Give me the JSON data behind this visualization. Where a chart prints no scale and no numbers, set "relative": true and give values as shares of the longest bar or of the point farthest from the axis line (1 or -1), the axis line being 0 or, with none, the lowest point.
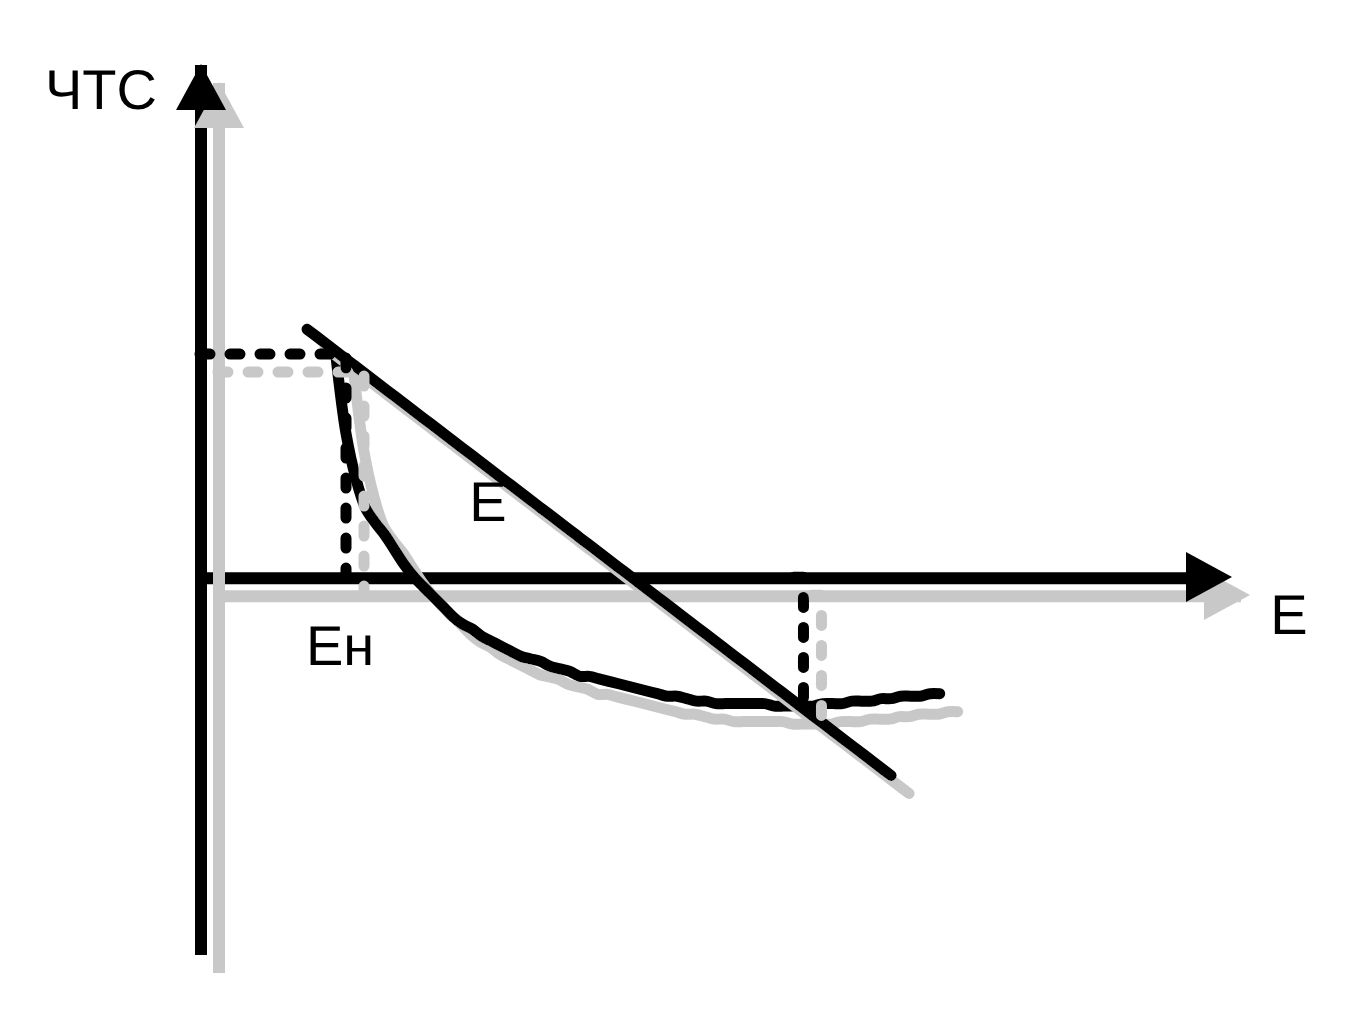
{
  "chart_data": {
    "type": "line",
    "xlabel": "E",
    "ylabel": "ЧТС",
    "relative": true,
    "annotations": [
      "Eн"
    ],
    "categories": [
      null,
      null,
      null,
      null,
      null,
      null,
      null,
      null,
      null,
      null,
      null,
      null,
      null,
      null,
      null,
      null,
      null,
      null,
      null,
      null,
      null,
      null,
      null,
      null,
      null,
      null,
      null,
      null,
      null,
      null,
      null,
      null,
      null,
      null,
      null,
      null,
      null,
      null,
      null,
      null,
      null,
      null,
      null,
      null,
      null,
      null,
      null,
      null,
      null,
      null,
      null,
      null,
      null,
      null,
      null,
      null,
      null,
      null,
      null,
      null,
      null,
      null,
      null,
      null,
      null,
      null,
      null,
      null,
      null,
      null,
      null,
      null,
      null,
      null,
      null,
      null,
      null,
      null,
      null,
      null,
      null,
      null,
      null,
      null,
      null,
      null,
      null,
      null,
      null,
      null,
      null,
      null,
      null,
      null,
      null,
      null,
      null,
      null,
      null,
      null,
      null,
      null,
      null,
      null,
      null,
      null
    ],
    "series": [
      {
        "color": "#000000",
        "values": [
          null,
          null,
          null,
          null,
          null,
          null,
          null,
          null,
          null,
          null,
          null,
          null,
          null,
          null,
          0.88,
          0.58,
          0.4,
          0.28,
          0.22,
          0.17,
          0.11,
          0.05,
          0.0,
          -0.04,
          -0.08,
          -0.12,
          -0.16,
          -0.19,
          -0.21,
          -0.24,
          -0.26,
          -0.28,
          -0.3,
          -0.32,
          -0.33,
          -0.34,
          -0.36,
          -0.37,
          -0.38,
          -0.4,
          -0.4,
          -0.41,
          -0.42,
          -0.43,
          -0.44,
          -0.45,
          -0.46,
          -0.47,
          -0.48,
          -0.48,
          -0.49,
          -0.5,
          -0.5,
          -0.51,
          -0.51,
          -0.51,
          -0.51,
          -0.51,
          -0.51,
          -0.52,
          -0.52,
          -0.52,
          -0.52,
          -0.52,
          -0.51,
          -0.51,
          -0.51,
          -0.5,
          -0.5,
          -0.5,
          -0.49,
          -0.49,
          -0.48,
          -0.48,
          -0.48,
          -0.47,
          -0.47,
          null,
          null,
          null,
          null,
          null,
          null,
          null,
          null,
          null,
          null,
          null,
          null,
          null,
          null,
          null,
          null,
          null,
          null,
          null,
          null,
          null,
          null,
          null,
          null,
          null,
          null,
          null,
          null,
          null
        ]
      },
      {
        "name": "E",
        "color": "#000000",
        "values": [
          null,
          null,
          null,
          null,
          null,
          null,
          null,
          null,
          null,
          null,
          null,
          1.0,
          0.97,
          0.94,
          0.91,
          0.88,
          0.85,
          0.82,
          0.79,
          0.76,
          0.73,
          0.7,
          0.67,
          0.64,
          0.61,
          0.58,
          0.55,
          0.52,
          0.49,
          0.46,
          0.43,
          0.4,
          0.37,
          0.34,
          0.31,
          0.28,
          0.25,
          0.22,
          0.19,
          0.16,
          0.13,
          0.1,
          0.07,
          0.04,
          0.01,
          -0.02,
          -0.05,
          -0.08,
          -0.11,
          -0.14,
          -0.17,
          -0.2,
          -0.23,
          -0.26,
          -0.29,
          -0.32,
          -0.35,
          -0.38,
          -0.41,
          -0.44,
          -0.47,
          -0.5,
          -0.53,
          -0.56,
          -0.59,
          -0.62,
          -0.65,
          -0.68,
          -0.71,
          -0.74,
          -0.77,
          -0.8,
          null,
          null,
          null,
          null,
          null,
          null,
          null,
          null,
          null,
          null,
          null,
          null,
          null,
          null,
          null,
          null,
          null,
          null,
          null,
          null,
          null,
          null,
          null,
          null,
          null,
          null,
          null,
          null,
          null,
          null,
          null,
          null,
          null,
          null
        ]
      },
      {
        "type": "step",
        "line_style": "dashed",
        "color": "#000000",
        "values": [
          0.9,
          0.9,
          0.9,
          0.9,
          0.9,
          0.9,
          0.9,
          0.9,
          0.9,
          0.9,
          0.9,
          0.9,
          0.9,
          0.9,
          0.9,
          0,
          null,
          null,
          null,
          null,
          null,
          null,
          null,
          null,
          null,
          null,
          null,
          null,
          null,
          null,
          null,
          null,
          null,
          null,
          null,
          null,
          null,
          null,
          null,
          null,
          null,
          null,
          null,
          null,
          null,
          null,
          null,
          null,
          null,
          null,
          null,
          null,
          null,
          null,
          null,
          null,
          null,
          null,
          null,
          null,
          null,
          null,
          null,
          null,
          null,
          null,
          null,
          null,
          null,
          null,
          null,
          null,
          null,
          null,
          null,
          null,
          null,
          null,
          null,
          null,
          null,
          null,
          null,
          null,
          null,
          null,
          null,
          null,
          null,
          null,
          null,
          null,
          null,
          null,
          null,
          null,
          null,
          null,
          null,
          null,
          null,
          null,
          null,
          null,
          null,
          null
        ]
      },
      {
        "type": "step",
        "line_style": "dashed",
        "color": "#000000",
        "values": [
          null,
          null,
          null,
          null,
          null,
          null,
          null,
          null,
          null,
          null,
          null,
          null,
          null,
          null,
          null,
          null,
          null,
          null,
          null,
          null,
          null,
          null,
          null,
          null,
          null,
          null,
          null,
          null,
          null,
          null,
          null,
          null,
          null,
          null,
          null,
          null,
          null,
          null,
          null,
          null,
          null,
          null,
          null,
          null,
          null,
          null,
          null,
          null,
          null,
          null,
          null,
          null,
          null,
          null,
          null,
          null,
          null,
          null,
          null,
          null,
          null,
          0,
          -0.52,
          null,
          null,
          null,
          null,
          null,
          null,
          null,
          null,
          null,
          null,
          null,
          null,
          null,
          null,
          null,
          null,
          null,
          null,
          null,
          null,
          null,
          null,
          null,
          null,
          null,
          null,
          null,
          null,
          null,
          null,
          null,
          null,
          null,
          null,
          null,
          null,
          null,
          null,
          null,
          null,
          null,
          null,
          null
        ]
      }
    ]
  }
}
